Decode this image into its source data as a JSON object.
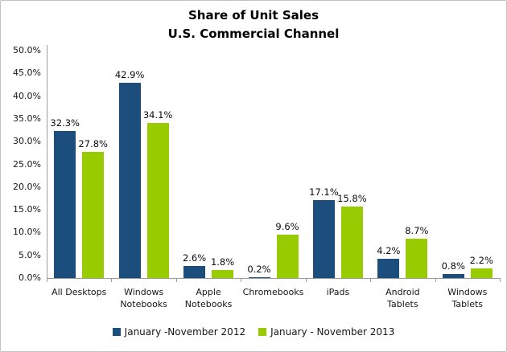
{
  "chart_data": {
    "type": "bar",
    "title": "Share of Unit Sales",
    "subtitle": "U.S. Commercial Channel",
    "categories": [
      "All Desktops",
      "Windows Notebooks",
      "Apple Notebooks",
      "Chromebooks",
      "iPads",
      "Android Tablets",
      "Windows Tablets"
    ],
    "series": [
      {
        "name": "January -November 2012",
        "color": "#1c4e7d",
        "values": [
          32.3,
          42.9,
          2.6,
          0.2,
          17.1,
          4.2,
          0.8
        ]
      },
      {
        "name": "January - November 2013",
        "color": "#99cc00",
        "values": [
          27.8,
          34.1,
          1.8,
          9.6,
          15.8,
          8.7,
          2.2
        ]
      }
    ],
    "ylim": [
      0,
      50
    ],
    "ytick_step": 5,
    "ytick_labels": [
      "0.0%",
      "5.0%",
      "10.0%",
      "15.0%",
      "20.0%",
      "25.0%",
      "30.0%",
      "35.0%",
      "40.0%",
      "45.0%",
      "50.0%"
    ],
    "value_suffix": "%",
    "value_decimals": 1,
    "grid": false,
    "legend_position": "bottom",
    "colors": {
      "axis": "#9d9d9d",
      "frame_border": "#c2c2c2",
      "label_text": "#0d0d0d"
    }
  }
}
